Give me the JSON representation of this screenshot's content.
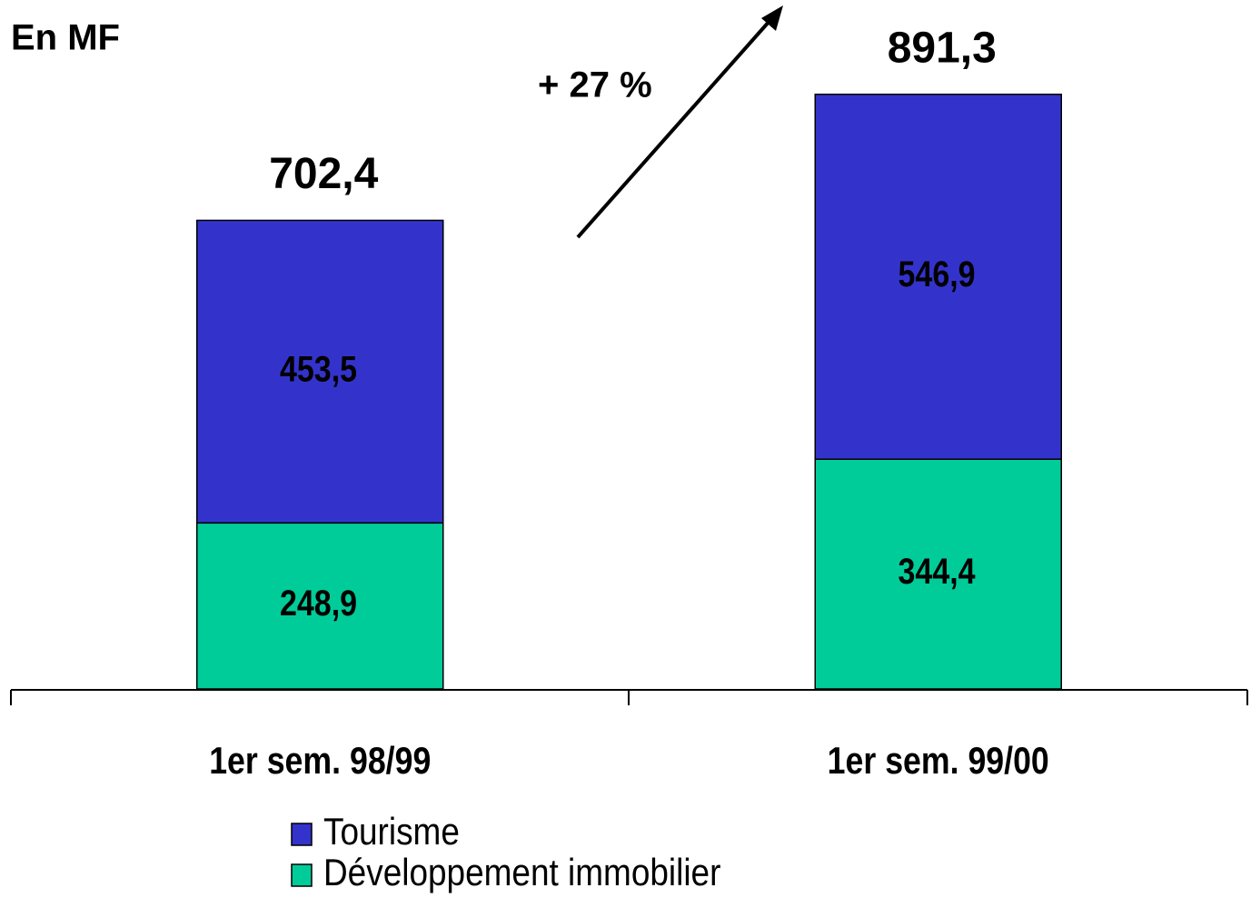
{
  "chart_data": {
    "type": "bar",
    "stacked": true,
    "unit_label": "En MF",
    "annotation": "+ 27 %",
    "categories": [
      "1er sem. 98/99",
      "1er sem. 99/00"
    ],
    "series": [
      {
        "name": "Développement immobilier",
        "color": "#00cc99",
        "values": [
          248.9,
          344.4
        ],
        "value_labels": [
          "248,9",
          "344,4"
        ]
      },
      {
        "name": "Tourisme",
        "color": "#3333cc",
        "values": [
          453.5,
          546.9
        ],
        "value_labels": [
          "453,5",
          "546,9"
        ]
      }
    ],
    "totals": [
      702.4,
      891.3
    ],
    "total_labels": [
      "702,4",
      "891,3"
    ],
    "ylim": [
      0,
      1000
    ]
  }
}
